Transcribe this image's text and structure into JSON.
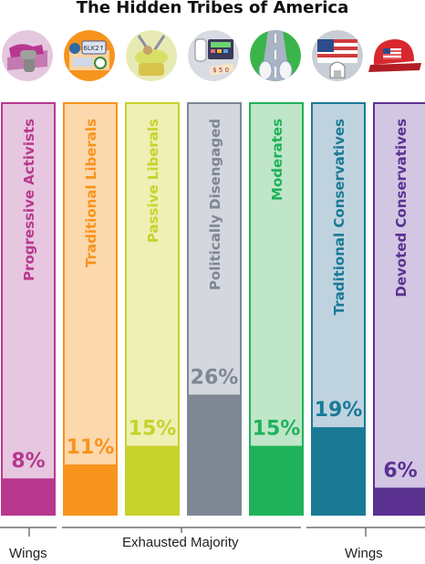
{
  "chart_data": {
    "type": "bar",
    "title": "The Hidden Tribes of America",
    "ylim": [
      0,
      45
    ],
    "value_suffix": "%",
    "categories": [
      "Progressive Activists",
      "Traditional Liberals",
      "Passive Liberals",
      "Politically Disengaged",
      "Moderates",
      "Traditional Conservatives",
      "Devoted Conservatives"
    ],
    "values": [
      8,
      11,
      15,
      26,
      15,
      19,
      6
    ],
    "colors": {
      "dark": [
        "#b8388f",
        "#f7941d",
        "#c7d22c",
        "#7f8794",
        "#1fb25a",
        "#1a7a96",
        "#5a3190"
      ],
      "light": [
        "#e7c6df",
        "#fcd8ad",
        "#eef0b4",
        "#d4d7de",
        "#bfe6c9",
        "#bfd3df",
        "#d2c6e3"
      ]
    },
    "icons": [
      "raised-fist-icon",
      "license-plate-car-icon",
      "person-hammock-icon",
      "baby-bottle-calculator-icon",
      "road-sneakers-icon",
      "flag-capitol-icon",
      "flag-cap-icon"
    ],
    "groups": [
      {
        "label": "Wings",
        "members": [
          "Progressive Activists"
        ]
      },
      {
        "label": "Exhausted Majority",
        "members": [
          "Traditional Liberals",
          "Passive Liberals",
          "Politically Disengaged",
          "Moderates"
        ]
      },
      {
        "label": "Wings",
        "members": [
          "Traditional Conservatives",
          "Devoted Conservatives"
        ]
      }
    ]
  }
}
